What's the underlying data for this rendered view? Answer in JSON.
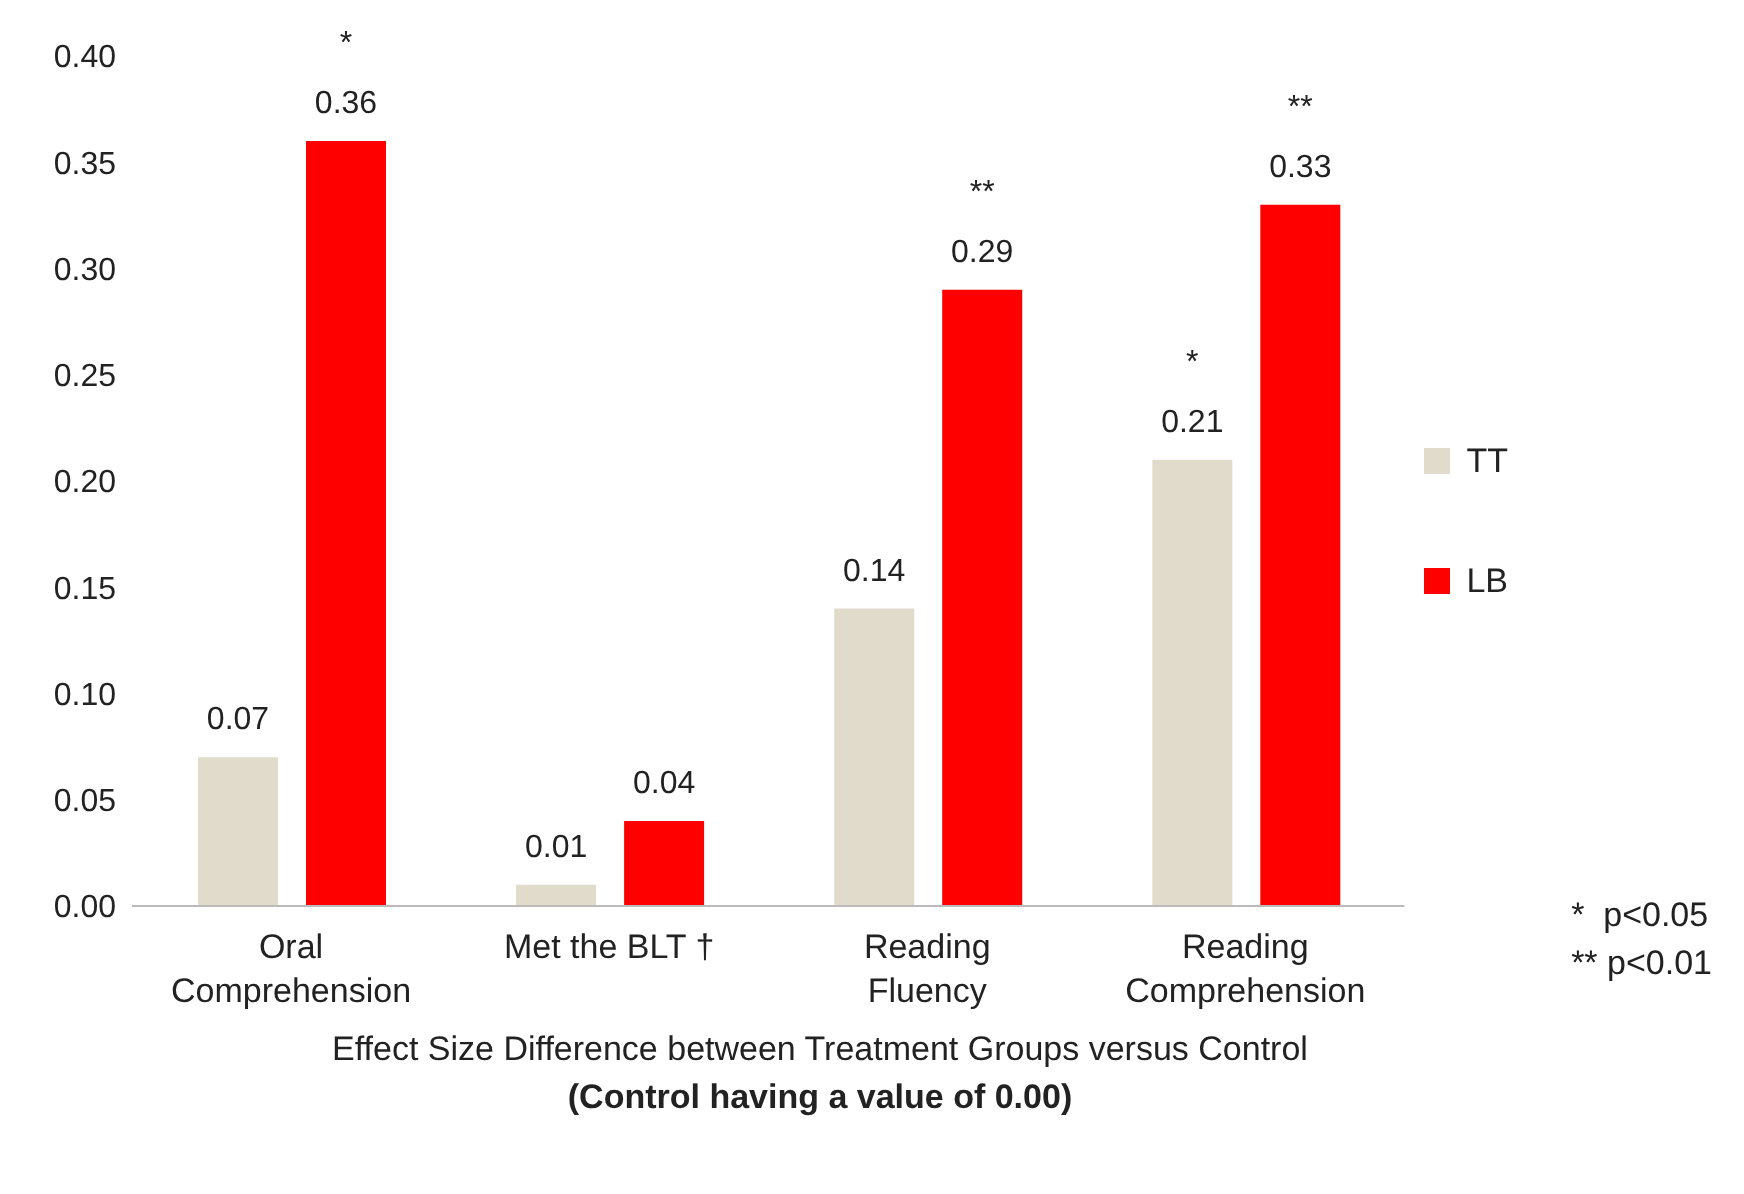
{
  "chart_data": {
    "type": "bar",
    "xlabel": "Effect Size Difference between Treatment Groups versus Control",
    "subtitle": "(Control having a value of 0.00)",
    "categories": [
      "Oral Comprehension",
      "Met the BLT †",
      "Reading Fluency",
      "Reading Comprehension"
    ],
    "series": [
      {
        "name": "TT",
        "color": "#e0dbcb",
        "values": [
          0.07,
          0.01,
          0.14,
          0.21
        ]
      },
      {
        "name": "LB",
        "color": "#ff0000",
        "values": [
          0.36,
          0.04,
          0.29,
          0.33
        ]
      }
    ],
    "ylim": [
      0,
      0.4
    ],
    "yticks": [
      {
        "value": 0,
        "label": "0.00"
      },
      {
        "value": 0.05,
        "label": "0.05"
      },
      {
        "value": 0.1,
        "label": "0.10"
      },
      {
        "value": 0.15,
        "label": "0.15"
      },
      {
        "value": 0.2,
        "label": "0.20"
      },
      {
        "value": 0.25,
        "label": "0.25"
      },
      {
        "value": 0.3,
        "label": "0.30"
      },
      {
        "value": 0.35,
        "label": "0.35"
      },
      {
        "value": 0.4,
        "label": "0.40"
      }
    ],
    "data_labels": true,
    "legend": "right",
    "grid": false,
    "annotations": [
      "*",
      "**",
      "*",
      "**",
      "*  p<0.05",
      "** p<0.01"
    ]
  }
}
